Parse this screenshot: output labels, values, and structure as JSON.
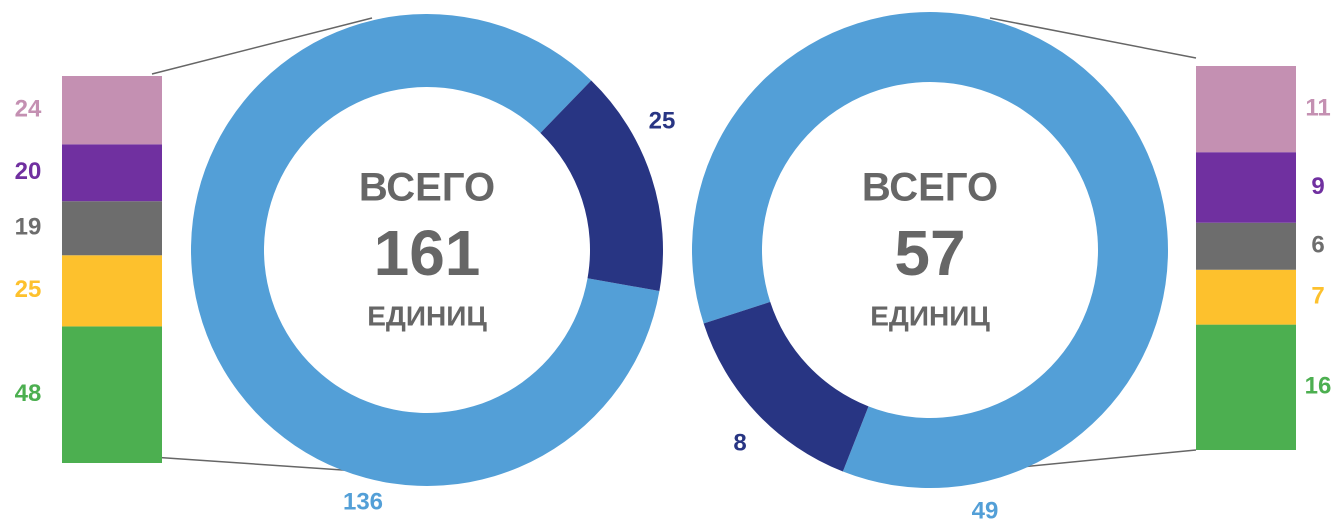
{
  "chart_data": [
    {
      "type": "donut",
      "center_title": "ВСЕГО",
      "total": 161,
      "center_unit": "ЕДИНИЦ",
      "values": [
        136,
        25
      ],
      "colors": [
        "#539fd7",
        "#283583"
      ],
      "breakdown": {
        "values": [
          48,
          25,
          19,
          20,
          24
        ],
        "colors": [
          "#4caf50",
          "#fdc12d",
          "#6d6d6d",
          "#7030a0",
          "#c490b2"
        ]
      }
    },
    {
      "type": "donut",
      "center_title": "ВСЕГО",
      "total": 57,
      "center_unit": "ЕДИНИЦ",
      "values": [
        49,
        8
      ],
      "colors": [
        "#539fd7",
        "#283583"
      ],
      "breakdown": {
        "values": [
          16,
          7,
          6,
          9,
          11
        ],
        "colors": [
          "#4caf50",
          "#fdc12d",
          "#6d6d6d",
          "#7030a0",
          "#c490b2"
        ]
      }
    }
  ]
}
